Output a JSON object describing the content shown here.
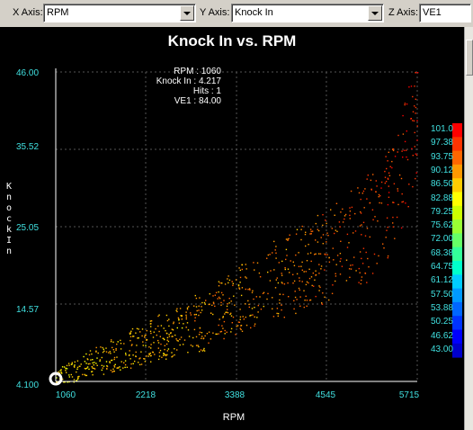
{
  "toolbar": {
    "x_axis": {
      "label": "X Axis:",
      "value": "RPM"
    },
    "y_axis": {
      "label": "Y Axis:",
      "value": "Knock In"
    },
    "z_axis": {
      "label": "Z Axis:",
      "value": "VE1"
    }
  },
  "chart": {
    "title": "Knock In vs. RPM",
    "y_axis_title": "Knock In",
    "x_axis_title": "RPM",
    "colors": {
      "background": "#000000",
      "axis": "#ffffff",
      "grid": "#555555",
      "tick_text": "#40e0e0"
    }
  },
  "tooltip": {
    "lines": [
      "RPM : 1060",
      "Knock In : 4.217",
      "Hits : 1",
      "VE1 : 84.00"
    ]
  },
  "chart_data": {
    "type": "scatter",
    "title": "Knock In vs. RPM",
    "xlabel": "RPM",
    "ylabel": "Knock In",
    "xlim": [
      1060,
      5715
    ],
    "ylim": [
      4.1,
      46.0
    ],
    "x_ticks": [
      "1060",
      "2218",
      "3388",
      "4545",
      "5715"
    ],
    "y_ticks": [
      "46.00",
      "35.52",
      "25.05",
      "14.57",
      "4.100"
    ],
    "grid": true,
    "color_scale": {
      "title": "VE1",
      "min": 43.0,
      "max": 101.0,
      "labels": [
        "101.0",
        "97.38",
        "93.75",
        "90.12",
        "86.50",
        "82.88",
        "79.25",
        "75.62",
        "72.00",
        "68.38",
        "64.75",
        "61.12",
        "57.50",
        "53.88",
        "50.25",
        "46.62",
        "43.00"
      ],
      "colors": [
        "#ff0000",
        "#ff3300",
        "#ff6600",
        "#ff9900",
        "#ffcc00",
        "#ffff00",
        "#ccff00",
        "#99ff33",
        "#66ff66",
        "#33ff99",
        "#00ffcc",
        "#00ccff",
        "#0099ff",
        "#0066ff",
        "#0033ff",
        "#0000ff",
        "#0000cc"
      ]
    },
    "trend": [
      {
        "x": 1060,
        "y": 4.5,
        "z": 84
      },
      {
        "x": 1500,
        "y": 6.5,
        "z": 86
      },
      {
        "x": 2000,
        "y": 8.5,
        "z": 88
      },
      {
        "x": 2600,
        "y": 11.0,
        "z": 88
      },
      {
        "x": 3000,
        "y": 12.5,
        "z": 90
      },
      {
        "x": 3388,
        "y": 15.0,
        "z": 90
      },
      {
        "x": 3800,
        "y": 17.5,
        "z": 91
      },
      {
        "x": 4200,
        "y": 19.5,
        "z": 92
      },
      {
        "x": 4545,
        "y": 21.0,
        "z": 93
      },
      {
        "x": 5000,
        "y": 24.0,
        "z": 95
      },
      {
        "x": 5400,
        "y": 29.0,
        "z": 97
      },
      {
        "x": 5715,
        "y": 40.0,
        "z": 99
      }
    ],
    "selected_point": {
      "x": 1060,
      "y": 4.217,
      "hits": 1,
      "z": 84.0
    }
  }
}
